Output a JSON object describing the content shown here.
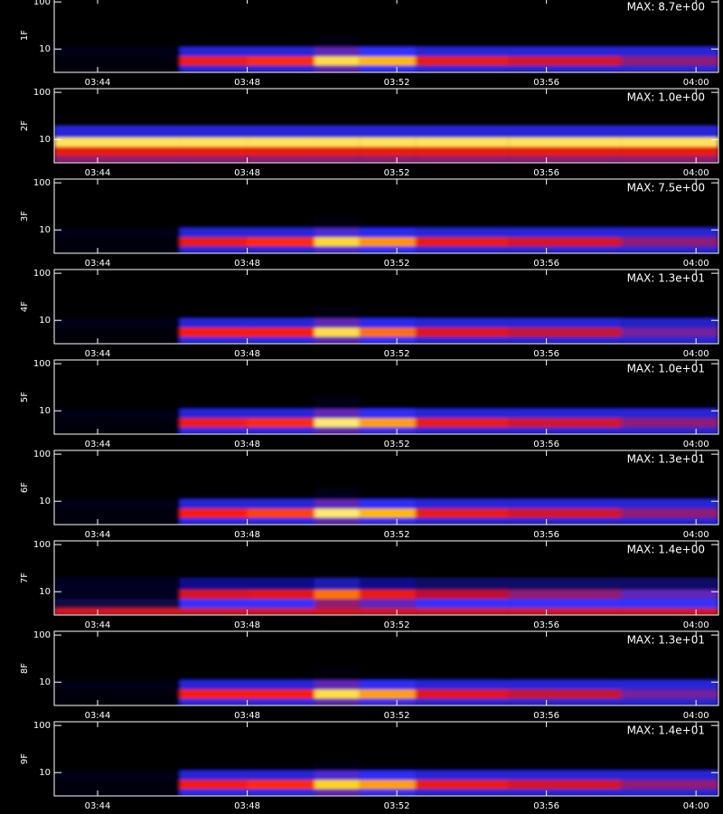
{
  "chart_data": [
    {
      "type": "spectrogram",
      "ylabel": "1F",
      "max_label": "MAX: 8.7e+00",
      "ylog": true,
      "ylim": [
        3.2,
        120
      ],
      "yticks": [
        10,
        100
      ],
      "xlim": [
        222.84,
        240.6
      ],
      "xticks": [
        {
          "value": 224,
          "label": "03:44"
        },
        {
          "value": 228,
          "label": "03:48"
        },
        {
          "value": 232,
          "label": "03:52"
        },
        {
          "value": 236,
          "label": "03:56"
        },
        {
          "value": 240,
          "label": "04:00"
        }
      ],
      "xbins": [
        222.84,
        226.2,
        228,
        229.8,
        231,
        232.5,
        235,
        238,
        240.6
      ],
      "ybins": [
        3.2,
        4.5,
        7,
        11,
        20
      ],
      "z": [
        [
          0.01,
          0.3,
          0.3,
          0.4,
          0.35,
          0.3,
          0.3,
          0.3
        ],
        [
          0.02,
          0.62,
          0.66,
          0.86,
          0.78,
          0.6,
          0.55,
          0.45
        ],
        [
          0.03,
          0.3,
          0.3,
          0.4,
          0.35,
          0.3,
          0.3,
          0.3
        ],
        [
          0,
          0,
          0,
          0.02,
          0,
          0,
          0,
          0
        ]
      ]
    },
    {
      "type": "spectrogram",
      "ylabel": "2F",
      "max_label": "MAX: 1.0e+00",
      "ylog": true,
      "ylim": [
        3.2,
        120
      ],
      "yticks": [
        10,
        100
      ],
      "xlim": [
        222.84,
        240.6
      ],
      "xticks": [
        {
          "value": 224,
          "label": "03:44"
        },
        {
          "value": 228,
          "label": "03:48"
        },
        {
          "value": 232,
          "label": "03:52"
        },
        {
          "value": 236,
          "label": "03:56"
        },
        {
          "value": 240,
          "label": "04:00"
        }
      ],
      "xbins": [
        222.84,
        226.2,
        228,
        229.8,
        231,
        232.5,
        235,
        238,
        240.6
      ],
      "ybins": [
        3.2,
        4.5,
        7,
        11,
        20
      ],
      "z": [
        [
          0.45,
          0.45,
          0.45,
          0.45,
          0.45,
          0.45,
          0.45,
          0.45
        ],
        [
          0.6,
          0.6,
          0.6,
          0.6,
          0.6,
          0.6,
          0.6,
          0.6
        ],
        [
          0.88,
          0.88,
          0.88,
          0.88,
          0.88,
          0.88,
          0.88,
          0.88
        ],
        [
          0.3,
          0.3,
          0.3,
          0.3,
          0.3,
          0.3,
          0.3,
          0.3
        ]
      ]
    },
    {
      "type": "spectrogram",
      "ylabel": "3F",
      "max_label": "MAX: 7.5e+00",
      "ylog": true,
      "ylim": [
        3.2,
        120
      ],
      "yticks": [
        10,
        100
      ],
      "xlim": [
        222.84,
        240.6
      ],
      "xticks": [
        {
          "value": 224,
          "label": "03:44"
        },
        {
          "value": 228,
          "label": "03:48"
        },
        {
          "value": 232,
          "label": "03:52"
        },
        {
          "value": 236,
          "label": "03:56"
        },
        {
          "value": 240,
          "label": "04:00"
        }
      ],
      "xbins": [
        222.84,
        226.2,
        228,
        229.8,
        231,
        232.5,
        235,
        238,
        240.6
      ],
      "ybins": [
        3.2,
        4.5,
        7,
        11,
        20
      ],
      "z": [
        [
          0.01,
          0.3,
          0.3,
          0.38,
          0.35,
          0.3,
          0.3,
          0.3
        ],
        [
          0.02,
          0.6,
          0.66,
          0.84,
          0.75,
          0.6,
          0.55,
          0.45
        ],
        [
          0.03,
          0.3,
          0.3,
          0.38,
          0.33,
          0.3,
          0.3,
          0.3
        ],
        [
          0,
          0,
          0,
          0.02,
          0,
          0,
          0,
          0
        ]
      ]
    },
    {
      "type": "spectrogram",
      "ylabel": "4F",
      "max_label": "MAX: 1.3e+01",
      "ylog": true,
      "ylim": [
        3.2,
        120
      ],
      "yticks": [
        10,
        100
      ],
      "xlim": [
        222.84,
        240.6
      ],
      "xticks": [
        {
          "value": 224,
          "label": "03:44"
        },
        {
          "value": 228,
          "label": "03:48"
        },
        {
          "value": 232,
          "label": "03:52"
        },
        {
          "value": 236,
          "label": "03:56"
        },
        {
          "value": 240,
          "label": "04:00"
        }
      ],
      "xbins": [
        222.84,
        226.2,
        228,
        229.8,
        231,
        232.5,
        235,
        238,
        240.6
      ],
      "ybins": [
        3.2,
        4.5,
        7,
        11,
        20
      ],
      "z": [
        [
          0.01,
          0.32,
          0.32,
          0.4,
          0.35,
          0.3,
          0.3,
          0.3
        ],
        [
          0.02,
          0.64,
          0.64,
          0.86,
          0.72,
          0.58,
          0.52,
          0.42
        ],
        [
          0.03,
          0.3,
          0.3,
          0.4,
          0.33,
          0.3,
          0.3,
          0.28
        ],
        [
          0,
          0,
          0,
          0.02,
          0,
          0,
          0,
          0
        ]
      ]
    },
    {
      "type": "spectrogram",
      "ylabel": "5F",
      "max_label": "MAX: 1.0e+01",
      "ylog": true,
      "ylim": [
        3.2,
        120
      ],
      "yticks": [
        10,
        100
      ],
      "xlim": [
        222.84,
        240.6
      ],
      "xticks": [
        {
          "value": 224,
          "label": "03:44"
        },
        {
          "value": 228,
          "label": "03:48"
        },
        {
          "value": 232,
          "label": "03:52"
        },
        {
          "value": 236,
          "label": "03:56"
        },
        {
          "value": 240,
          "label": "04:00"
        }
      ],
      "xbins": [
        222.84,
        226.2,
        228,
        229.8,
        231,
        232.5,
        235,
        238,
        240.6
      ],
      "ybins": [
        3.2,
        4.5,
        7,
        11,
        20
      ],
      "z": [
        [
          0.01,
          0.32,
          0.32,
          0.4,
          0.36,
          0.3,
          0.3,
          0.3
        ],
        [
          0.02,
          0.62,
          0.66,
          0.9,
          0.76,
          0.6,
          0.55,
          0.45
        ],
        [
          0.03,
          0.3,
          0.3,
          0.4,
          0.34,
          0.3,
          0.3,
          0.3
        ],
        [
          0,
          0,
          0,
          0.03,
          0,
          0,
          0,
          0
        ]
      ]
    },
    {
      "type": "spectrogram",
      "ylabel": "6F",
      "max_label": "MAX: 1.3e+01",
      "ylog": true,
      "ylim": [
        3.2,
        120
      ],
      "yticks": [
        10,
        100
      ],
      "xlim": [
        222.84,
        240.6
      ],
      "xticks": [
        {
          "value": 224,
          "label": "03:44"
        },
        {
          "value": 228,
          "label": "03:48"
        },
        {
          "value": 232,
          "label": "03:52"
        },
        {
          "value": 236,
          "label": "03:56"
        },
        {
          "value": 240,
          "label": "04:00"
        }
      ],
      "xbins": [
        222.84,
        226.2,
        228,
        229.8,
        231,
        232.5,
        235,
        238,
        240.6
      ],
      "ybins": [
        3.2,
        4.5,
        7,
        11,
        20
      ],
      "z": [
        [
          0.01,
          0.32,
          0.32,
          0.4,
          0.36,
          0.3,
          0.3,
          0.3
        ],
        [
          0.02,
          0.64,
          0.68,
          0.9,
          0.78,
          0.6,
          0.55,
          0.45
        ],
        [
          0.03,
          0.3,
          0.3,
          0.4,
          0.34,
          0.3,
          0.3,
          0.3
        ],
        [
          0,
          0,
          0,
          0.03,
          0,
          0,
          0,
          0
        ]
      ]
    },
    {
      "type": "spectrogram",
      "ylabel": "7F",
      "max_label": "MAX: 1.4e+00",
      "ylog": true,
      "ylim": [
        3.2,
        120
      ],
      "yticks": [
        10,
        100
      ],
      "xlim": [
        222.84,
        240.6
      ],
      "xticks": [
        {
          "value": 224,
          "label": "03:44"
        },
        {
          "value": 228,
          "label": "03:48"
        },
        {
          "value": 232,
          "label": "03:52"
        },
        {
          "value": 236,
          "label": "03:56"
        },
        {
          "value": 240,
          "label": "04:00"
        }
      ],
      "xbins": [
        222.84,
        226.2,
        228,
        229.8,
        231,
        232.5,
        235,
        238,
        240.6
      ],
      "ybins": [
        3.2,
        4.5,
        7,
        11,
        20
      ],
      "z": [
        [
          0.55,
          0.55,
          0.55,
          0.55,
          0.55,
          0.55,
          0.55,
          0.55
        ],
        [
          0.1,
          0.35,
          0.35,
          0.45,
          0.4,
          0.35,
          0.35,
          0.35
        ],
        [
          0.05,
          0.55,
          0.58,
          0.72,
          0.6,
          0.5,
          0.45,
          0.4
        ],
        [
          0.05,
          0.2,
          0.2,
          0.25,
          0.2,
          0.15,
          0.15,
          0.15
        ]
      ]
    },
    {
      "type": "spectrogram",
      "ylabel": "8F",
      "max_label": "MAX: 1.3e+01",
      "ylog": true,
      "ylim": [
        3.2,
        120
      ],
      "yticks": [
        10,
        100
      ],
      "xlim": [
        222.84,
        240.6
      ],
      "xticks": [
        {
          "value": 224,
          "label": "03:44"
        },
        {
          "value": 228,
          "label": "03:48"
        },
        {
          "value": 232,
          "label": "03:52"
        },
        {
          "value": 236,
          "label": "03:56"
        },
        {
          "value": 240,
          "label": "04:00"
        }
      ],
      "xbins": [
        222.84,
        226.2,
        228,
        229.8,
        231,
        232.5,
        235,
        238,
        240.6
      ],
      "ybins": [
        3.2,
        4.5,
        7,
        11,
        20
      ],
      "z": [
        [
          0.01,
          0.32,
          0.32,
          0.4,
          0.36,
          0.3,
          0.3,
          0.3
        ],
        [
          0.02,
          0.64,
          0.64,
          0.86,
          0.76,
          0.58,
          0.52,
          0.42
        ],
        [
          0.03,
          0.3,
          0.3,
          0.4,
          0.34,
          0.3,
          0.3,
          0.3
        ],
        [
          0,
          0,
          0,
          0.02,
          0,
          0,
          0,
          0
        ]
      ]
    },
    {
      "type": "spectrogram",
      "ylabel": "9F",
      "max_label": "MAX: 1.4e+01",
      "ylog": true,
      "ylim": [
        3.2,
        120
      ],
      "yticks": [
        10,
        100
      ],
      "xlim": [
        222.84,
        240.6
      ],
      "xticks": [
        {
          "value": 224,
          "label": "03:44"
        },
        {
          "value": 228,
          "label": "03:48"
        },
        {
          "value": 232,
          "label": "03:52"
        },
        {
          "value": 236,
          "label": "03:56"
        },
        {
          "value": 240,
          "label": "04:00"
        }
      ],
      "xbins": [
        222.84,
        226.2,
        228,
        229.8,
        231,
        232.5,
        235,
        238,
        240.6
      ],
      "ybins": [
        3.2,
        4.5,
        7,
        11,
        20
      ],
      "z": [
        [
          0.01,
          0.32,
          0.32,
          0.4,
          0.36,
          0.3,
          0.3,
          0.3
        ],
        [
          0.02,
          0.62,
          0.66,
          0.82,
          0.76,
          0.6,
          0.55,
          0.45
        ],
        [
          0.03,
          0.3,
          0.3,
          0.38,
          0.34,
          0.3,
          0.3,
          0.3
        ],
        [
          0,
          0,
          0,
          0.02,
          0,
          0,
          0,
          0
        ]
      ]
    }
  ]
}
